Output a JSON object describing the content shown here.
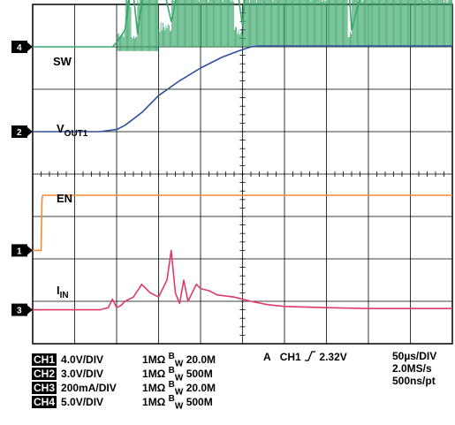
{
  "chart_data": {
    "type": "line",
    "title": "",
    "xlabel": "",
    "ylabel": "",
    "grid": true,
    "grid_divisions": {
      "x": 10,
      "y": 8
    },
    "xlim": [
      0,
      500
    ],
    "x_unit": "us",
    "series": [
      {
        "name": "SW",
        "channel": "4",
        "color": "#3aa66a",
        "offset_div": 7.0,
        "x": [
          0,
          95,
          100,
          110,
          118,
          125,
          135,
          150,
          165,
          180,
          190,
          205,
          220,
          240,
          250,
          255,
          265,
          285,
          300,
          320,
          340,
          360,
          375,
          380,
          400,
          420,
          440,
          460,
          480,
          500
        ],
        "y": [
          0,
          0,
          0.1,
          0.4,
          1.6,
          0.3,
          1.8,
          1.9,
          0.6,
          1.9,
          1.9,
          1.9,
          1.9,
          1.9,
          0.5,
          1.9,
          1.9,
          1.9,
          1.9,
          1.9,
          1.9,
          1.9,
          1.9,
          0.4,
          1.9,
          1.9,
          1.9,
          1.9,
          1.9,
          1.9
        ]
      },
      {
        "name": "VOUT1",
        "channel": "2",
        "color": "#2e4f9e",
        "offset_div": 5.0,
        "x": [
          0,
          80,
          100,
          110,
          130,
          150,
          175,
          200,
          225,
          245,
          260,
          270,
          300,
          350,
          400,
          450,
          500
        ],
        "y": [
          0,
          0,
          0.05,
          0.15,
          0.45,
          0.85,
          1.2,
          1.5,
          1.75,
          1.9,
          2.0,
          2.02,
          2.02,
          2.02,
          2.02,
          2.02,
          2.02
        ]
      },
      {
        "name": "EN",
        "channel": "1",
        "color": "#f28c34",
        "offset_div": 2.2,
        "x": [
          0,
          10,
          11,
          12,
          100,
          200,
          300,
          400,
          500
        ],
        "y": [
          0,
          0,
          1.2,
          1.3,
          1.3,
          1.3,
          1.3,
          1.3,
          1.3
        ]
      },
      {
        "name": "IIN",
        "channel": "3",
        "color": "#e03a6a",
        "offset_div": 0.8,
        "x": [
          0,
          80,
          90,
          95,
          100,
          105,
          110,
          120,
          130,
          140,
          150,
          160,
          165,
          170,
          175,
          180,
          185,
          190,
          195,
          200,
          210,
          220,
          240,
          260,
          280,
          300,
          350,
          400,
          450,
          500
        ],
        "y": [
          0,
          0,
          0.05,
          0.25,
          0.05,
          0.1,
          0.2,
          0.3,
          0.6,
          0.4,
          0.3,
          0.7,
          1.4,
          0.4,
          0.15,
          0.7,
          0.2,
          0.4,
          0.6,
          0.5,
          0.45,
          0.35,
          0.3,
          0.2,
          0.12,
          0.08,
          0.05,
          0.03,
          0.03,
          0.03
        ]
      }
    ],
    "trace_labels": {
      "sw": "SW",
      "vout_main": "V",
      "vout_sub": "OUT1",
      "en": "EN",
      "iin_main": "I",
      "iin_sub": "IN"
    },
    "markers": [
      "4",
      "2",
      "1",
      "3"
    ]
  },
  "settings": {
    "channels": [
      {
        "badge": "CH1",
        "scale": "4.0V/DIV",
        "impedance": "1MΩ",
        "bw_main": "B",
        "bw_sub": "W",
        "bw_val": "20.0M"
      },
      {
        "badge": "CH2",
        "scale": "3.0V/DIV",
        "impedance": "1MΩ",
        "bw_main": "B",
        "bw_sub": "W",
        "bw_val": "500M"
      },
      {
        "badge": "CH3",
        "scale": "200mA/DIV",
        "impedance": "1MΩ",
        "bw_main": "B",
        "bw_sub": "W",
        "bw_val": "20.0M"
      },
      {
        "badge": "CH4",
        "scale": "5.0V/DIV",
        "impedance": "1MΩ",
        "bw_main": "B",
        "bw_sub": "W",
        "bw_val": "500M"
      }
    ],
    "trigger": {
      "mode": "A",
      "channel": "CH1",
      "edge": "rising",
      "level": "2.32V"
    },
    "timebase": {
      "div": "50µs/DIV",
      "rate": "2.0MS/s",
      "res": "500ns/pt"
    }
  }
}
